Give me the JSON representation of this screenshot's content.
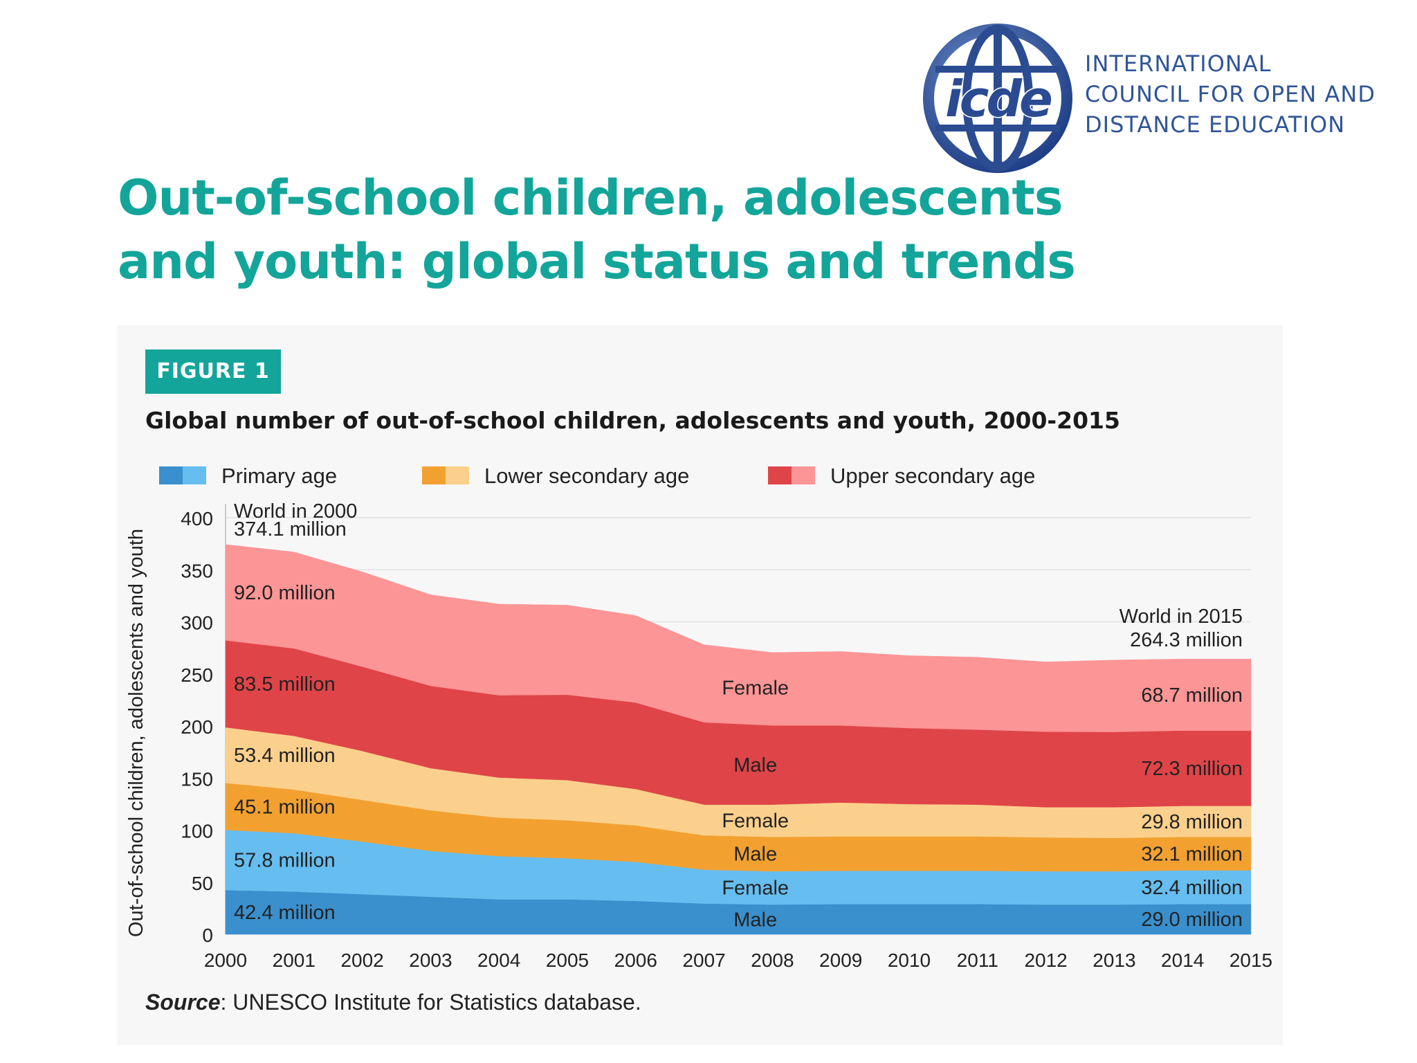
{
  "logo": {
    "mark_text": "icde",
    "lines": [
      "INTERNATIONAL",
      "COUNCIL FOR OPEN AND",
      "DISTANCE EDUCATION"
    ]
  },
  "page_title": [
    "Out-of-school children, adolescents",
    "and youth: global status and trends"
  ],
  "figure": {
    "badge": "FIGURE 1",
    "title": "Global number of out-of-school children, adolescents and youth, 2000-2015",
    "source_label": "Source",
    "source_text": ": UNESCO Institute for Statistics database."
  },
  "colors": {
    "teal": "#13a59a",
    "primary_male": "#3a8fcd",
    "primary_female": "#66bdef",
    "lower_male": "#f2a131",
    "lower_female": "#fbd08c",
    "upper_male": "#df4448",
    "upper_female": "#fc9596"
  },
  "chart_data": {
    "type": "area",
    "stacked": true,
    "title": "Global number of out-of-school children, adolescents and youth, 2000-2015",
    "ylabel": "Out-of-school children, adolescents and youth",
    "xlabel": "",
    "ylim": [
      0,
      400
    ],
    "yticks": [
      0,
      50,
      100,
      150,
      200,
      250,
      300,
      350,
      400
    ],
    "x": [
      "2000",
      "2001",
      "2002",
      "2003",
      "2004",
      "2005",
      "2006",
      "2007",
      "2008",
      "2009",
      "2010",
      "2011",
      "2012",
      "2013",
      "2014",
      "2015"
    ],
    "legend": [
      {
        "label": "Primary age",
        "colors": [
          "primary_male",
          "primary_female"
        ]
      },
      {
        "label": "Lower secondary age",
        "colors": [
          "lower_male",
          "lower_female"
        ]
      },
      {
        "label": "Upper secondary age",
        "colors": [
          "upper_male",
          "upper_female"
        ]
      }
    ],
    "series": [
      {
        "name": "Primary age - Male",
        "color": "primary_male",
        "label": "Male",
        "values": [
          42.4,
          41.0,
          38.5,
          36.0,
          33.5,
          33.5,
          32.0,
          29.5,
          28.5,
          29.0,
          29.0,
          29.0,
          28.5,
          28.5,
          29.0,
          29.0
        ]
      },
      {
        "name": "Primary age - Female",
        "color": "primary_female",
        "label": "Female",
        "values": [
          57.8,
          56.0,
          50.5,
          44.0,
          41.5,
          39.5,
          37.5,
          32.5,
          32.0,
          32.0,
          32.0,
          32.0,
          32.0,
          32.0,
          32.4,
          32.4
        ]
      },
      {
        "name": "Lower secondary age - Male",
        "color": "lower_male",
        "label": "Male",
        "values": [
          45.1,
          42.0,
          40.0,
          39.0,
          37.0,
          36.5,
          35.0,
          33.0,
          33.0,
          33.0,
          33.0,
          33.0,
          32.5,
          32.0,
          32.1,
          32.1
        ]
      },
      {
        "name": "Lower secondary age - Female",
        "color": "lower_female",
        "label": "Female",
        "values": [
          53.4,
          51.5,
          47.0,
          40.5,
          38.5,
          38.5,
          35.0,
          29.5,
          31.0,
          32.5,
          31.0,
          30.5,
          29.0,
          29.5,
          29.8,
          29.8
        ]
      },
      {
        "name": "Upper secondary age - Male",
        "color": "upper_male",
        "label": "Male",
        "values": [
          83.5,
          84.0,
          81.0,
          79.0,
          79.0,
          82.0,
          83.0,
          79.0,
          76.0,
          74.0,
          73.0,
          72.0,
          72.5,
          72.3,
          72.3,
          72.3
        ]
      },
      {
        "name": "Upper secondary age - Female",
        "color": "upper_female",
        "label": "Female",
        "values": [
          92.0,
          92.5,
          91.0,
          87.5,
          87.5,
          86.0,
          83.5,
          74.5,
          70.0,
          71.0,
          69.5,
          69.5,
          67.0,
          69.0,
          68.7,
          68.7
        ]
      }
    ],
    "start_labels": [
      "42.4 million",
      "57.8 million",
      "45.1 million",
      "53.4 million",
      "83.5 million",
      "92.0 million"
    ],
    "end_labels": [
      "29.0 million",
      "32.4 million",
      "32.1 million",
      "29.8 million",
      "72.3 million",
      "68.7 million"
    ],
    "annotations": {
      "start_title": "World in 2000",
      "start_total": "374.1 million",
      "end_title": "World in 2015",
      "end_total": "264.3 million"
    }
  }
}
